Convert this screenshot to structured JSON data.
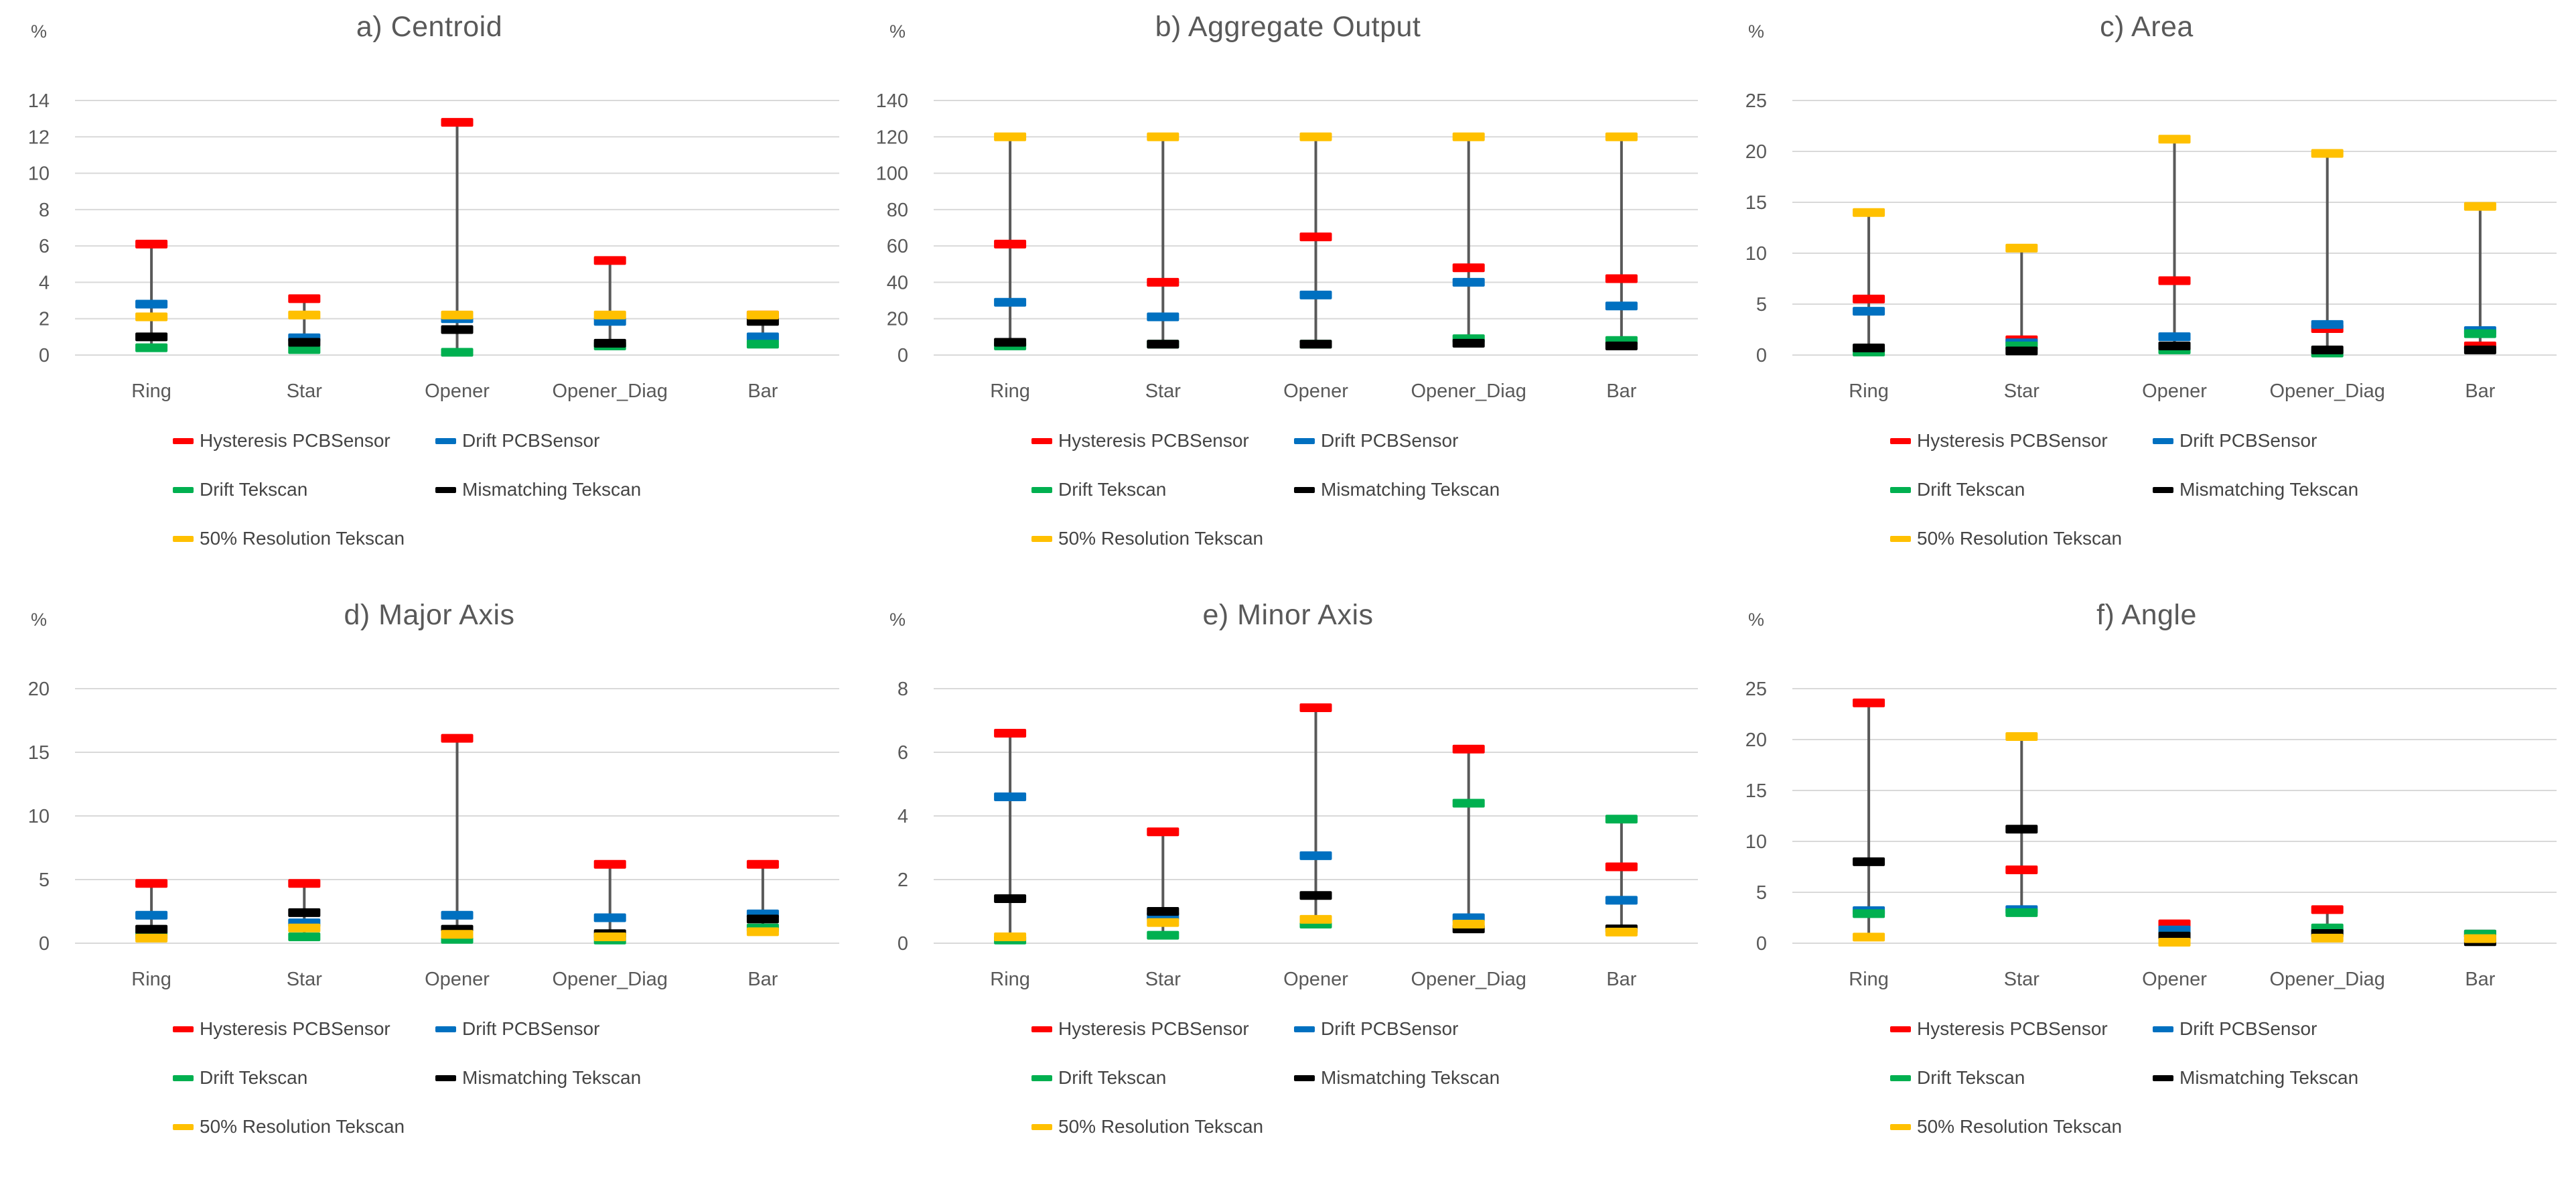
{
  "page": {
    "background": "#FFFFFF",
    "layout": "2 rows x 3 columns of charts"
  },
  "series": [
    {
      "label": "Hysteresis PCBSensor",
      "color": "#FF0000"
    },
    {
      "label": "Drift PCBSensor",
      "color": "#0070C0"
    },
    {
      "label": "Drift Tekscan",
      "color": "#00B050"
    },
    {
      "label": "Mismatching Tekscan",
      "color": "#000000"
    },
    {
      "label": "50% Resolution Tekscan",
      "color": "#FFC000"
    }
  ],
  "categories": [
    "Ring",
    "Star",
    "Opener",
    "Opener_Diag",
    "Bar"
  ],
  "style_colors": {
    "gridline": "#D9D9D9",
    "hilo_line": "#595959",
    "title_text": "#595959",
    "axis_text": "#595959",
    "legend_text": "#444444"
  },
  "chart_data": [
    {
      "type": "scatter",
      "subtype": "high-low-dash-marker",
      "title": "a) Centroid",
      "unit": "%",
      "ylim": [
        0,
        14
      ],
      "ystep": 2,
      "grid": true,
      "legend_position": "bottom",
      "series": [
        {
          "name": "Hysteresis PCBSensor",
          "values": [
            6.1,
            3.1,
            12.8,
            5.2,
            2.2
          ]
        },
        {
          "name": "Drift PCBSensor",
          "values": [
            2.8,
            0.95,
            2.0,
            1.85,
            1.0
          ]
        },
        {
          "name": "Drift Tekscan",
          "values": [
            0.4,
            0.3,
            0.15,
            0.5,
            0.6
          ]
        },
        {
          "name": "Mismatching Tekscan",
          "values": [
            1.0,
            0.7,
            1.4,
            0.65,
            1.85
          ]
        },
        {
          "name": "50% Resolution Tekscan",
          "values": [
            2.1,
            2.2,
            2.2,
            2.2,
            2.2
          ]
        }
      ]
    },
    {
      "type": "scatter",
      "subtype": "high-low-dash-marker",
      "title": "b) Aggregate Output",
      "unit": "%",
      "ylim": [
        0,
        140
      ],
      "ystep": 20,
      "grid": true,
      "legend_position": "bottom",
      "series": [
        {
          "name": "Hysteresis PCBSensor",
          "values": [
            61,
            40,
            65,
            48,
            42
          ]
        },
        {
          "name": "Drift PCBSensor",
          "values": [
            29,
            21,
            33,
            40,
            27
          ]
        },
        {
          "name": "Drift Tekscan",
          "values": [
            5,
            6,
            6,
            9,
            8
          ]
        },
        {
          "name": "Mismatching Tekscan",
          "values": [
            7,
            6,
            6,
            6.5,
            5
          ]
        },
        {
          "name": "50% Resolution Tekscan",
          "values": [
            120,
            120,
            120,
            120,
            120
          ]
        }
      ]
    },
    {
      "type": "scatter",
      "subtype": "high-low-dash-marker",
      "title": "c) Area",
      "unit": "%",
      "ylim": [
        0,
        25
      ],
      "ystep": 5,
      "grid": true,
      "legend_position": "bottom",
      "series": [
        {
          "name": "Hysteresis PCBSensor",
          "values": [
            5.5,
            1.5,
            7.3,
            2.6,
            0.9
          ]
        },
        {
          "name": "Drift PCBSensor",
          "values": [
            4.3,
            1.2,
            1.8,
            3.0,
            2.4
          ]
        },
        {
          "name": "Drift Tekscan",
          "values": [
            0.3,
            0.9,
            0.5,
            0.2,
            2.1
          ]
        },
        {
          "name": "Mismatching Tekscan",
          "values": [
            0.7,
            0.4,
            0.9,
            0.5,
            0.5
          ]
        },
        {
          "name": "50% Resolution Tekscan",
          "values": [
            14.0,
            10.5,
            21.2,
            19.8,
            14.6
          ]
        }
      ]
    },
    {
      "type": "scatter",
      "subtype": "high-low-dash-marker",
      "title": "d) Major Axis",
      "unit": "%",
      "ylim": [
        0,
        20
      ],
      "ystep": 5,
      "grid": true,
      "legend_position": "bottom",
      "series": [
        {
          "name": "Hysteresis PCBSensor",
          "values": [
            4.7,
            4.7,
            16.1,
            6.2,
            6.2
          ]
        },
        {
          "name": "Drift PCBSensor",
          "values": [
            2.2,
            1.6,
            2.2,
            2.0,
            2.3
          ]
        },
        {
          "name": "Drift Tekscan",
          "values": [
            0.6,
            0.5,
            0.3,
            0.25,
            1.2
          ]
        },
        {
          "name": "Mismatching Tekscan",
          "values": [
            1.1,
            2.4,
            1.1,
            0.75,
            1.9
          ]
        },
        {
          "name": "50% Resolution Tekscan",
          "values": [
            0.4,
            1.2,
            0.7,
            0.5,
            0.9
          ]
        }
      ]
    },
    {
      "type": "scatter",
      "subtype": "high-low-dash-marker",
      "title": "e) Minor Axis",
      "unit": "%",
      "ylim": [
        0,
        8
      ],
      "ystep": 2,
      "grid": true,
      "legend_position": "bottom",
      "series": [
        {
          "name": "Hysteresis PCBSensor",
          "values": [
            6.6,
            3.5,
            7.4,
            6.1,
            2.4
          ]
        },
        {
          "name": "Drift PCBSensor",
          "values": [
            4.6,
            0.85,
            2.75,
            0.8,
            1.35
          ]
        },
        {
          "name": "Drift Tekscan",
          "values": [
            0.1,
            0.25,
            0.6,
            4.4,
            3.9
          ]
        },
        {
          "name": "Mismatching Tekscan",
          "values": [
            1.4,
            1.0,
            1.5,
            0.45,
            0.45
          ]
        },
        {
          "name": "50% Resolution Tekscan",
          "values": [
            0.2,
            0.65,
            0.75,
            0.6,
            0.35
          ]
        }
      ]
    },
    {
      "type": "scatter",
      "subtype": "high-low-dash-marker",
      "title": "f) Angle",
      "unit": "%",
      "ylim": [
        0,
        25
      ],
      "ystep": 5,
      "grid": true,
      "legend_position": "bottom",
      "series": [
        {
          "name": "Hysteresis PCBSensor",
          "values": [
            23.6,
            7.2,
            1.9,
            3.3,
            0.9
          ]
        },
        {
          "name": "Drift PCBSensor",
          "values": [
            3.2,
            3.3,
            1.3,
            1.1,
            0.9
          ]
        },
        {
          "name": "Drift Tekscan",
          "values": [
            2.9,
            3.0,
            0.7,
            1.5,
            0.9
          ]
        },
        {
          "name": "Mismatching Tekscan",
          "values": [
            8.0,
            11.2,
            0.7,
            0.95,
            0.15
          ]
        },
        {
          "name": "50% Resolution Tekscan",
          "values": [
            0.6,
            20.3,
            0.1,
            0.5,
            0.45
          ]
        }
      ]
    }
  ]
}
